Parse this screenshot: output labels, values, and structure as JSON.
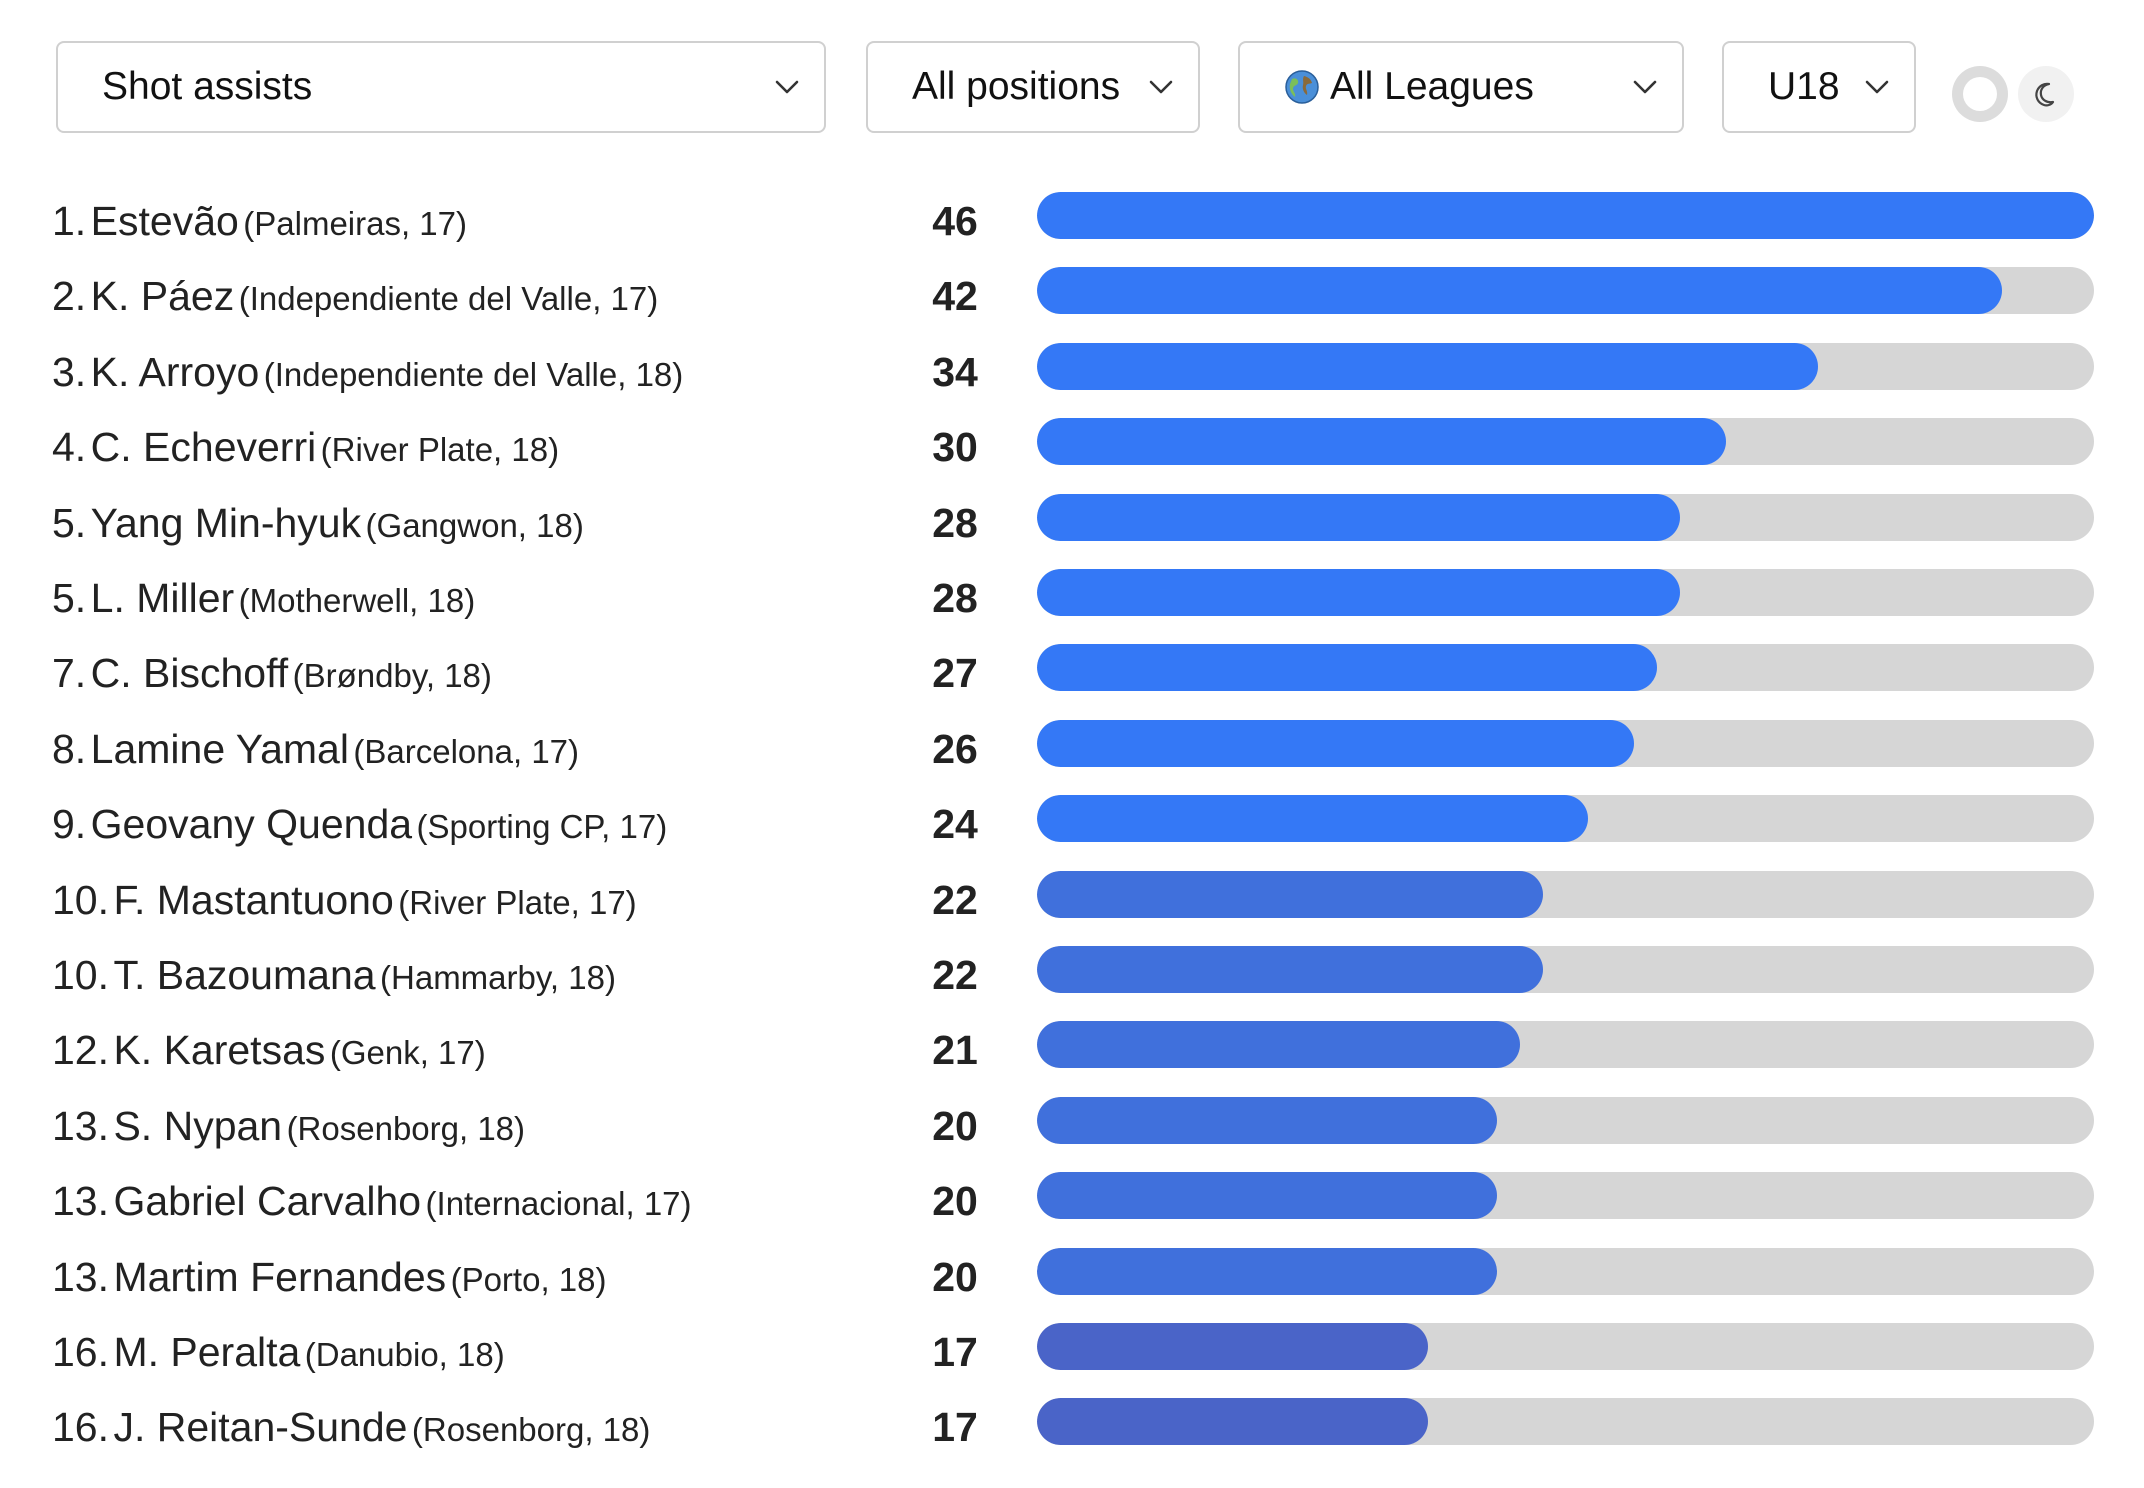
{
  "filters": {
    "metric": "Shot assists",
    "position": "All positions",
    "league": "All Leagues",
    "age": "U18",
    "league_icon": "globe-icon"
  },
  "theme": {
    "light_icon": "circle-icon",
    "dark_icon": "moon-icon"
  },
  "colors": {
    "bar_track": "#d6d6d6",
    "bar_high": "#3478f6",
    "bar_mid": "#4070dc",
    "bar_low": "#4a64c8"
  },
  "chart_data": {
    "type": "bar",
    "max": 46,
    "rows": [
      {
        "rank": "1.",
        "name": "Estevão",
        "meta": "(Palmeiras, 17)",
        "value": 46
      },
      {
        "rank": "2.",
        "name": "K. Páez",
        "meta": "(Independiente del Valle, 17)",
        "value": 42
      },
      {
        "rank": "3.",
        "name": "K. Arroyo",
        "meta": "(Independiente del Valle, 18)",
        "value": 34
      },
      {
        "rank": "4.",
        "name": "C. Echeverri",
        "meta": "(River Plate, 18)",
        "value": 30
      },
      {
        "rank": "5.",
        "name": "Yang Min-hyuk",
        "meta": "(Gangwon, 18)",
        "value": 28
      },
      {
        "rank": "5.",
        "name": "L. Miller",
        "meta": "(Motherwell, 18)",
        "value": 28
      },
      {
        "rank": "7.",
        "name": "C. Bischoff",
        "meta": "(Brøndby, 18)",
        "value": 27
      },
      {
        "rank": "8.",
        "name": "Lamine Yamal",
        "meta": "(Barcelona, 17)",
        "value": 26
      },
      {
        "rank": "9.",
        "name": "Geovany Quenda",
        "meta": "(Sporting CP, 17)",
        "value": 24
      },
      {
        "rank": "10.",
        "name": "F. Mastantuono",
        "meta": "(River Plate, 17)",
        "value": 22
      },
      {
        "rank": "10.",
        "name": "T. Bazoumana",
        "meta": "(Hammarby, 18)",
        "value": 22
      },
      {
        "rank": "12.",
        "name": "K. Karetsas",
        "meta": "(Genk, 17)",
        "value": 21
      },
      {
        "rank": "13.",
        "name": "S. Nypan",
        "meta": "(Rosenborg, 18)",
        "value": 20
      },
      {
        "rank": "13.",
        "name": "Gabriel Carvalho",
        "meta": "(Internacional, 17)",
        "value": 20
      },
      {
        "rank": "13.",
        "name": "Martim Fernandes",
        "meta": "(Porto, 18)",
        "value": 20
      },
      {
        "rank": "16.",
        "name": "M. Peralta",
        "meta": "(Danubio, 18)",
        "value": 17
      },
      {
        "rank": "16.",
        "name": "J. Reitan-Sunde",
        "meta": "(Rosenborg, 18)",
        "value": 17
      }
    ]
  }
}
